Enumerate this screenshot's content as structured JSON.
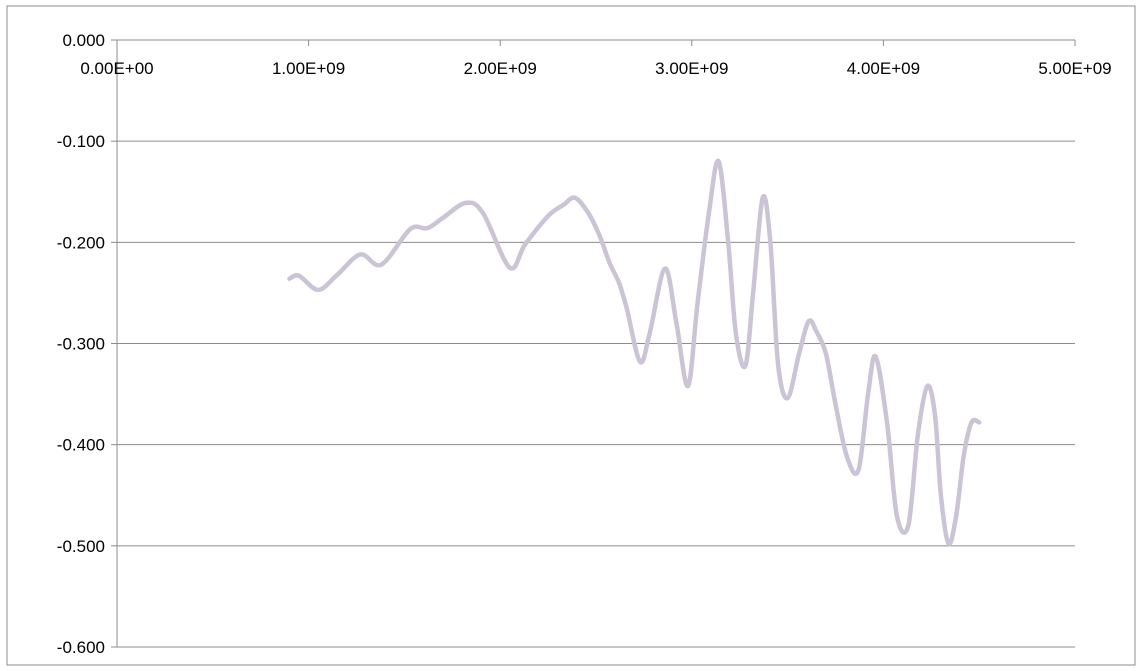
{
  "chart_data": {
    "type": "line",
    "smooth": true,
    "grid": {
      "horizontal": true,
      "vertical": false
    },
    "legend": "none",
    "xlim": [
      0,
      5000000000
    ],
    "ylim": [
      -0.6,
      0.0
    ],
    "x_axis_position": "top",
    "x_ticks": [
      0,
      1000000000,
      2000000000,
      3000000000,
      4000000000,
      5000000000
    ],
    "x_tick_labels": [
      "0.00E+00",
      "1.00E+09",
      "2.00E+09",
      "3.00E+09",
      "4.00E+09",
      "5.00E+09"
    ],
    "y_ticks": [
      0.0,
      -0.1,
      -0.2,
      -0.3,
      -0.4,
      -0.5,
      -0.6
    ],
    "y_tick_labels": [
      "0.000",
      "-0.100",
      "-0.200",
      "-0.300",
      "-0.400",
      "-0.500",
      "-0.600"
    ],
    "series": [
      {
        "color": "#cac4d6",
        "x": [
          900000000,
          950000000,
          1050000000,
          1150000000,
          1270000000,
          1380000000,
          1530000000,
          1620000000,
          1700000000,
          1820000000,
          1910000000,
          2050000000,
          2130000000,
          2250000000,
          2330000000,
          2390000000,
          2460000000,
          2520000000,
          2570000000,
          2620000000,
          2660000000,
          2730000000,
          2780000000,
          2860000000,
          2920000000,
          2980000000,
          3030000000,
          3090000000,
          3140000000,
          3190000000,
          3230000000,
          3280000000,
          3320000000,
          3370000000,
          3410000000,
          3450000000,
          3500000000,
          3560000000,
          3610000000,
          3650000000,
          3700000000,
          3750000000,
          3810000000,
          3870000000,
          3920000000,
          3960000000,
          4020000000,
          4070000000,
          4130000000,
          4180000000,
          4230000000,
          4270000000,
          4300000000,
          4340000000,
          4380000000,
          4420000000,
          4460000000,
          4500000000
        ],
        "y": [
          -0.236,
          -0.233,
          -0.247,
          -0.232,
          -0.212,
          -0.222,
          -0.187,
          -0.186,
          -0.176,
          -0.161,
          -0.171,
          -0.225,
          -0.202,
          -0.174,
          -0.163,
          -0.156,
          -0.171,
          -0.194,
          -0.22,
          -0.24,
          -0.265,
          -0.318,
          -0.29,
          -0.226,
          -0.28,
          -0.342,
          -0.26,
          -0.17,
          -0.12,
          -0.2,
          -0.29,
          -0.322,
          -0.25,
          -0.156,
          -0.2,
          -0.32,
          -0.354,
          -0.31,
          -0.278,
          -0.288,
          -0.31,
          -0.36,
          -0.412,
          -0.425,
          -0.35,
          -0.313,
          -0.38,
          -0.47,
          -0.48,
          -0.39,
          -0.342,
          -0.372,
          -0.45,
          -0.498,
          -0.47,
          -0.41,
          -0.378,
          -0.378
        ]
      }
    ]
  }
}
